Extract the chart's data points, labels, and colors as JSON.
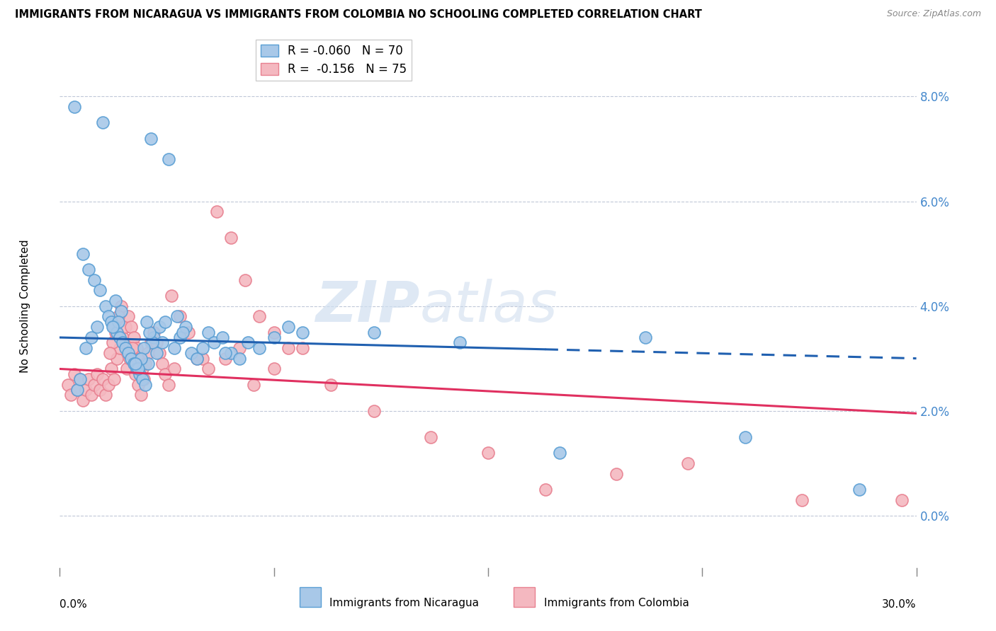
{
  "title": "IMMIGRANTS FROM NICARAGUA VS IMMIGRANTS FROM COLOMBIA NO SCHOOLING COMPLETED CORRELATION CHART",
  "source": "Source: ZipAtlas.com",
  "ylabel": "No Schooling Completed",
  "xlim": [
    0.0,
    30.0
  ],
  "ylim": [
    -1.0,
    9.0
  ],
  "yticks": [
    0.0,
    2.0,
    4.0,
    6.0,
    8.0
  ],
  "xticks": [
    0.0,
    7.5,
    15.0,
    22.5,
    30.0
  ],
  "legend_r1": "R = -0.060",
  "legend_n1": "N = 70",
  "legend_r2": "R =  -0.156",
  "legend_n2": "N = 75",
  "color_nicaragua": "#a8c8e8",
  "color_nicaragua_edge": "#5a9fd4",
  "color_colombia": "#f4b8c0",
  "color_colombia_edge": "#e88090",
  "color_nicaragua_line": "#2060b0",
  "color_colombia_line": "#e03060",
  "watermark_zip": "ZIP",
  "watermark_atlas": "atlas",
  "nicaragua_x": [
    0.5,
    1.5,
    3.2,
    3.8,
    0.8,
    1.0,
    1.2,
    1.4,
    1.6,
    1.7,
    1.8,
    1.9,
    2.0,
    2.1,
    2.2,
    2.3,
    2.4,
    2.5,
    2.6,
    2.7,
    2.8,
    2.9,
    3.0,
    3.1,
    3.3,
    3.4,
    3.5,
    3.6,
    3.7,
    4.0,
    4.2,
    4.4,
    4.6,
    4.8,
    5.0,
    5.2,
    5.4,
    5.7,
    6.0,
    6.3,
    6.6,
    7.0,
    7.5,
    8.0,
    4.1,
    4.3,
    2.15,
    2.05,
    1.95,
    1.85,
    0.9,
    1.1,
    1.3,
    3.25,
    3.15,
    3.05,
    2.95,
    2.85,
    2.75,
    2.65,
    0.6,
    0.7,
    11.0,
    14.0,
    17.5,
    20.5,
    24.0,
    28.0,
    5.8,
    8.5
  ],
  "nicaragua_y": [
    7.8,
    7.5,
    7.2,
    6.8,
    5.0,
    4.7,
    4.5,
    4.3,
    4.0,
    3.8,
    3.7,
    3.6,
    3.5,
    3.4,
    3.3,
    3.2,
    3.1,
    3.0,
    2.9,
    2.8,
    2.7,
    2.6,
    2.5,
    2.9,
    3.4,
    3.1,
    3.6,
    3.3,
    3.7,
    3.2,
    3.4,
    3.6,
    3.1,
    3.0,
    3.2,
    3.5,
    3.3,
    3.4,
    3.1,
    3.0,
    3.3,
    3.2,
    3.4,
    3.6,
    3.8,
    3.5,
    3.9,
    3.7,
    4.1,
    3.6,
    3.2,
    3.4,
    3.6,
    3.3,
    3.5,
    3.7,
    3.2,
    3.0,
    2.8,
    2.9,
    2.4,
    2.6,
    3.5,
    3.3,
    1.2,
    3.4,
    1.5,
    0.5,
    3.1,
    3.5
  ],
  "colombia_x": [
    0.3,
    0.4,
    0.5,
    0.6,
    0.7,
    0.8,
    0.9,
    1.0,
    1.1,
    1.2,
    1.3,
    1.4,
    1.5,
    1.6,
    1.7,
    1.8,
    1.9,
    2.0,
    2.1,
    2.2,
    2.3,
    2.4,
    2.5,
    2.6,
    2.7,
    2.8,
    2.9,
    3.0,
    3.1,
    3.2,
    3.3,
    3.4,
    3.5,
    3.6,
    3.7,
    3.8,
    4.0,
    4.5,
    5.0,
    5.5,
    6.0,
    6.5,
    7.0,
    7.5,
    8.0,
    3.9,
    4.2,
    4.8,
    2.15,
    2.05,
    1.95,
    1.85,
    1.75,
    2.35,
    2.45,
    2.55,
    2.65,
    2.75,
    2.85,
    2.95,
    5.2,
    5.8,
    6.3,
    6.8,
    7.5,
    8.5,
    9.5,
    11.0,
    13.0,
    15.0,
    17.0,
    19.5,
    22.0,
    26.0,
    29.5
  ],
  "colombia_y": [
    2.5,
    2.3,
    2.7,
    2.4,
    2.6,
    2.2,
    2.4,
    2.6,
    2.3,
    2.5,
    2.7,
    2.4,
    2.6,
    2.3,
    2.5,
    2.8,
    2.6,
    3.0,
    3.2,
    3.4,
    3.6,
    3.8,
    3.6,
    3.4,
    3.2,
    3.0,
    2.8,
    2.9,
    3.1,
    3.3,
    3.5,
    3.3,
    3.1,
    2.9,
    2.7,
    2.5,
    2.8,
    3.5,
    3.0,
    5.8,
    5.3,
    4.5,
    3.8,
    3.5,
    3.2,
    4.2,
    3.8,
    3.0,
    4.0,
    3.8,
    3.5,
    3.3,
    3.1,
    2.8,
    3.0,
    3.2,
    2.7,
    2.5,
    2.3,
    2.6,
    2.8,
    3.0,
    3.2,
    2.5,
    2.8,
    3.2,
    2.5,
    2.0,
    1.5,
    1.2,
    0.5,
    0.8,
    1.0,
    0.3,
    0.3
  ]
}
